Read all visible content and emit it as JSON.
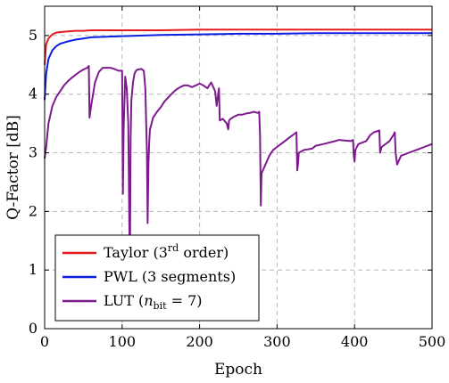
{
  "chart_data": {
    "type": "line",
    "xlabel": "Epoch",
    "ylabel": "Q-Factor [dB]",
    "xlim": [
      0,
      500
    ],
    "ylim": [
      0,
      5.5
    ],
    "xticks": [
      0,
      100,
      200,
      300,
      400,
      500
    ],
    "yticks": [
      0,
      1,
      2,
      3,
      4,
      5
    ],
    "grid": true,
    "legend_position": "bottom-left",
    "series": [
      {
        "name": "Taylor (3rd order)",
        "name_parts": [
          "Taylor (3",
          "rd",
          " order)"
        ],
        "color": "#e41a1c",
        "x": [
          0,
          2,
          5,
          10,
          15,
          20,
          30,
          40,
          50,
          60,
          80,
          100,
          150,
          200,
          250,
          300,
          350,
          400,
          450,
          500
        ],
        "y": [
          4.5,
          4.85,
          4.95,
          5.02,
          5.05,
          5.06,
          5.07,
          5.08,
          5.08,
          5.09,
          5.09,
          5.09,
          5.09,
          5.1,
          5.1,
          5.1,
          5.1,
          5.1,
          5.1,
          5.1
        ]
      },
      {
        "name": "PWL (3 segments)",
        "name_parts": [
          "PWL (3 segments)"
        ],
        "color": "#0a1fe0",
        "x": [
          0,
          2,
          5,
          10,
          15,
          20,
          30,
          40,
          50,
          60,
          80,
          100,
          150,
          200,
          250,
          300,
          350,
          400,
          450,
          500
        ],
        "y": [
          3.9,
          4.35,
          4.6,
          4.75,
          4.82,
          4.86,
          4.9,
          4.93,
          4.95,
          4.97,
          4.98,
          4.99,
          5.01,
          5.02,
          5.03,
          5.03,
          5.04,
          5.04,
          5.04,
          5.04
        ]
      },
      {
        "name": "LUT (n_bit = 7)",
        "name_parts": [
          "LUT (",
          "n",
          "bit",
          " = 7)"
        ],
        "color": "#7d1a8e",
        "x": [
          0,
          2,
          5,
          10,
          15,
          20,
          25,
          30,
          35,
          40,
          45,
          50,
          55,
          57,
          58,
          60,
          65,
          70,
          75,
          80,
          85,
          90,
          95,
          100,
          101,
          102,
          104,
          106,
          108,
          110,
          111,
          112,
          114,
          116,
          118,
          120,
          125,
          128,
          130,
          132,
          133,
          134,
          135,
          136,
          138,
          140,
          145,
          150,
          155,
          160,
          165,
          170,
          175,
          180,
          185,
          190,
          195,
          200,
          205,
          210,
          215,
          220,
          222,
          224,
          225,
          226,
          230,
          235,
          237,
          238,
          240,
          245,
          250,
          255,
          260,
          265,
          270,
          275,
          277,
          278,
          279,
          280,
          285,
          290,
          295,
          300,
          305,
          310,
          315,
          320,
          325,
          326,
          327,
          328,
          335,
          345,
          350,
          360,
          375,
          380,
          395,
          398,
          399,
          400,
          401,
          405,
          415,
          420,
          425,
          432,
          433,
          435,
          445,
          450,
          452,
          453,
          455,
          460,
          470,
          480,
          490,
          500
        ],
        "y": [
          2.9,
          3.1,
          3.5,
          3.8,
          3.95,
          4.05,
          4.15,
          4.22,
          4.28,
          4.33,
          4.38,
          4.42,
          4.45,
          4.48,
          3.6,
          3.8,
          4.2,
          4.38,
          4.45,
          4.45,
          4.45,
          4.43,
          4.4,
          4.4,
          2.3,
          3.4,
          4.3,
          4.1,
          3.5,
          0.9,
          3.2,
          3.9,
          4.2,
          4.35,
          4.4,
          4.42,
          4.43,
          4.4,
          4.1,
          3.0,
          1.8,
          2.8,
          3.2,
          3.4,
          3.5,
          3.6,
          3.7,
          3.78,
          3.88,
          3.95,
          4.02,
          4.08,
          4.12,
          4.15,
          4.15,
          4.12,
          4.15,
          4.18,
          4.15,
          4.1,
          4.2,
          4.05,
          3.8,
          4.0,
          4.1,
          3.55,
          3.58,
          3.5,
          3.4,
          3.55,
          3.58,
          3.62,
          3.65,
          3.65,
          3.67,
          3.68,
          3.7,
          3.68,
          3.7,
          3.3,
          2.1,
          2.65,
          2.8,
          2.95,
          3.05,
          3.1,
          3.15,
          3.2,
          3.25,
          3.3,
          3.35,
          2.7,
          2.8,
          3.0,
          3.05,
          3.07,
          3.12,
          3.15,
          3.2,
          3.22,
          3.2,
          3.22,
          2.95,
          2.85,
          3.05,
          3.15,
          3.2,
          3.3,
          3.35,
          3.38,
          3.0,
          3.1,
          3.2,
          3.3,
          3.35,
          3.0,
          2.8,
          2.95,
          3.0,
          3.05,
          3.1,
          3.15
        ]
      }
    ]
  }
}
